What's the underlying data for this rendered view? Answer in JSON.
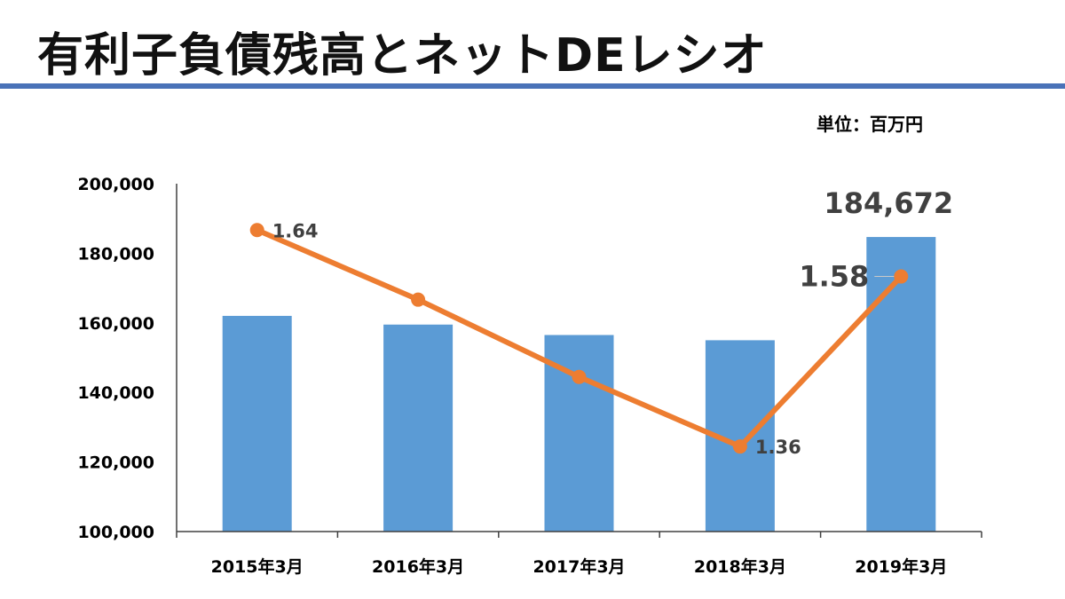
{
  "slide": {
    "title": "有利子負債残高とネットDEレシオ",
    "unit_label": "単位：百万円"
  },
  "colors": {
    "accent_rule": "#4a72b8",
    "bar": "#5b9bd5",
    "line": "#ed7d31",
    "axis": "#404040"
  },
  "chart_data": {
    "type": "bar",
    "categories": [
      "2015年3月",
      "2016年3月",
      "2017年3月",
      "2018年3月",
      "2019年3月"
    ],
    "ylim": [
      100000,
      200000
    ],
    "yticks": [
      100000,
      120000,
      140000,
      160000,
      180000,
      200000
    ],
    "ytick_labels": [
      "100,000",
      "120,000",
      "140,000",
      "160,000",
      "180,000",
      "200,000"
    ],
    "grid": false,
    "series": [
      {
        "type": "bar",
        "values": [
          162000,
          159500,
          156500,
          155000,
          184672
        ],
        "data_labels": [
          "",
          "",
          "",
          "",
          "184,672"
        ]
      },
      {
        "type": "line",
        "axis": "secondary",
        "values": [
          1.64,
          1.55,
          1.45,
          1.36,
          1.58
        ],
        "data_labels": [
          "1.64",
          "",
          "",
          "1.36",
          "1.58"
        ]
      }
    ],
    "secondary_ylim": [
      1.25,
      1.7
    ]
  }
}
